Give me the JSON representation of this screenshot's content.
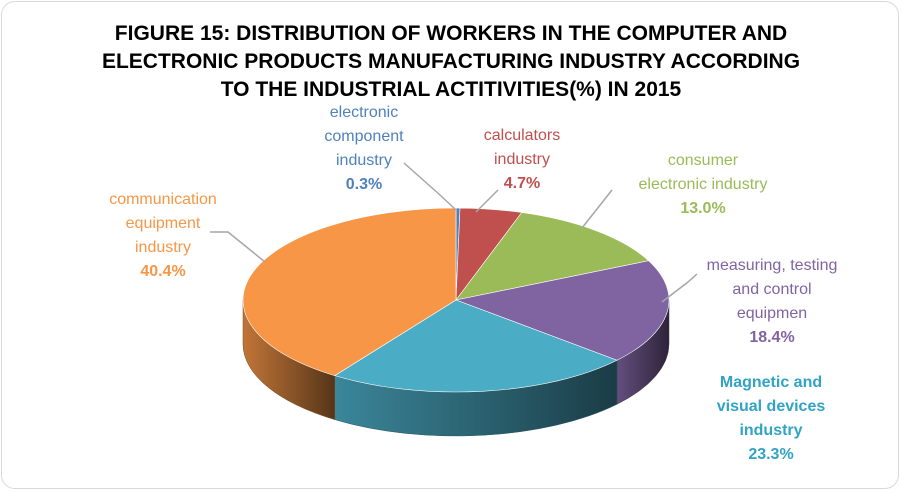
{
  "colors": {
    "communication": "#f79646",
    "electronic": "#4f81bd",
    "calculators": "#c0504d",
    "consumer": "#9bbb59",
    "measuring": "#8064a2",
    "magnetic": "#4bacc6",
    "leader": "#a6a6a6"
  },
  "chart_data": {
    "type": "pie",
    "title_lines": [
      "FIGURE 15: DISTRIBUTION OF WORKERS IN THE COMPUTER AND",
      "ELECTRONIC PRODUCTS MANUFACTURING  INDUSTRY ACCORDING",
      "TO THE INDUSTRIAL ACTITIVITIES(%) IN 2015"
    ],
    "style": "3d",
    "legend": "none",
    "slices": [
      {
        "key": "electronic",
        "label_lines": [
          "electronic",
          "component",
          "industry"
        ],
        "value": 0.3,
        "value_label": "0.3%"
      },
      {
        "key": "calculators",
        "label_lines": [
          "calculators",
          "industry"
        ],
        "value": 4.7,
        "value_label": "4.7%"
      },
      {
        "key": "consumer",
        "label_lines": [
          "consumer",
          "electronic industry"
        ],
        "value": 13.0,
        "value_label": "13.0%"
      },
      {
        "key": "measuring",
        "label_lines": [
          "measuring, testing",
          "and control",
          "equipmen"
        ],
        "value": 18.4,
        "value_label": "18.4%"
      },
      {
        "key": "magnetic",
        "label_lines": [
          "Magnetic and",
          "visual devices",
          "industry"
        ],
        "value": 23.3,
        "value_label": "23.3%"
      },
      {
        "key": "communication",
        "label_lines": [
          "communication",
          "equipment",
          "industry"
        ],
        "value": 40.4,
        "value_label": "40.4%"
      }
    ]
  }
}
